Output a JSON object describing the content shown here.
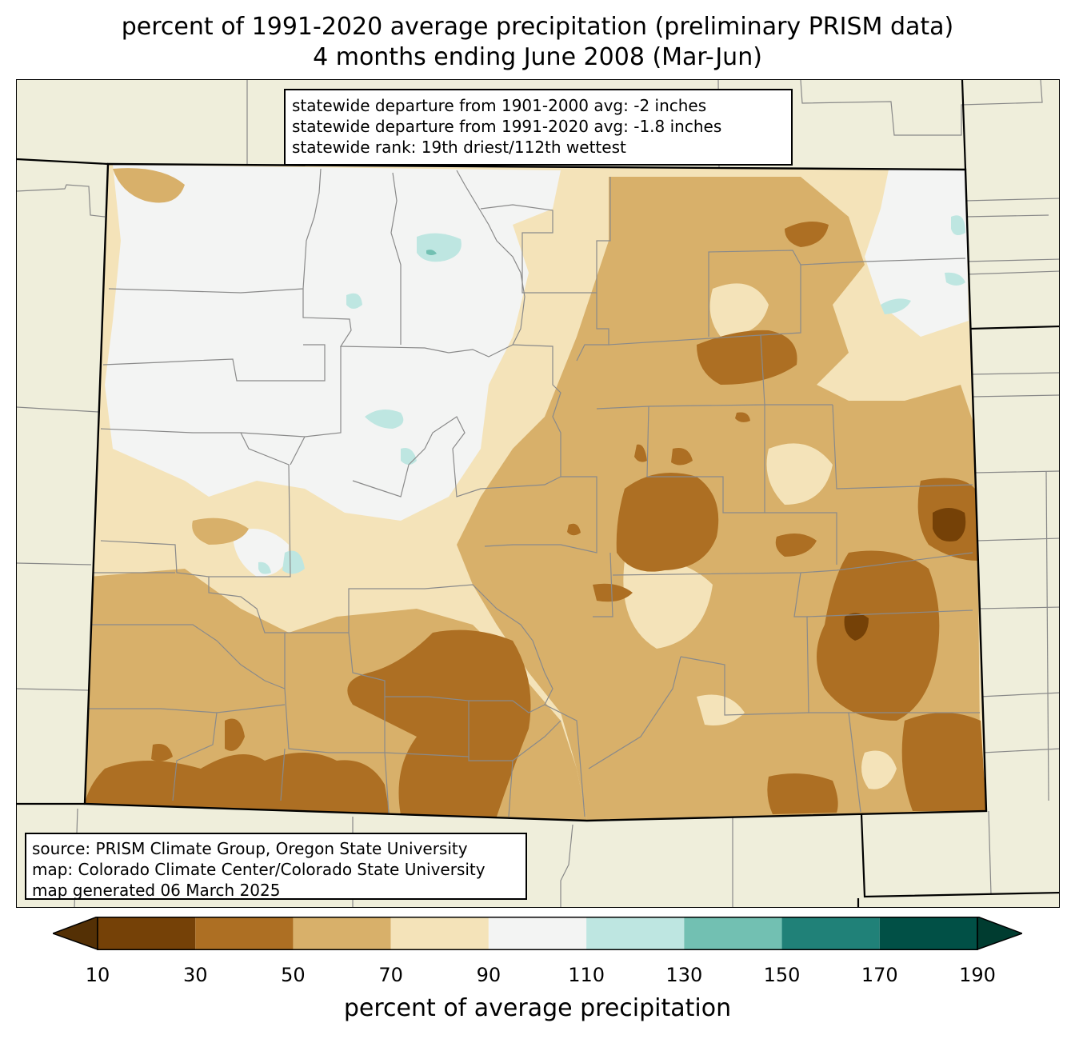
{
  "title": {
    "line1": "percent of 1991-2020 average precipitation (preliminary PRISM data)",
    "line2": "4 months ending June 2008 (Mar-Jun)"
  },
  "stats": {
    "line1": "statewide departure from 1901-2000 avg: -2 inches",
    "line2": "statewide departure from 1991-2020 avg: -1.8 inches",
    "line3": "statewide rank: 19th driest/112th wettest"
  },
  "source": {
    "line1": "source: PRISM Climate Group, Oregon State University",
    "line2": "map: Colorado Climate Center/Colorado State University",
    "line3": "map generated 06 March 2025"
  },
  "colorbar": {
    "label": "percent of average precipitation",
    "ticks": [
      "10",
      "30",
      "50",
      "70",
      "90",
      "110",
      "130",
      "150",
      "170",
      "190"
    ],
    "under_color": "#543005",
    "over_color": "#003c30",
    "bins": [
      {
        "from": 10,
        "to": 30,
        "color": "#754107"
      },
      {
        "from": 30,
        "to": 50,
        "color": "#ad6f23"
      },
      {
        "from": 50,
        "to": 70,
        "color": "#d8b06a"
      },
      {
        "from": 70,
        "to": 90,
        "color": "#f4e3b9"
      },
      {
        "from": 90,
        "to": 110,
        "color": "#f3f4f3"
      },
      {
        "from": 110,
        "to": 130,
        "color": "#bee6e1"
      },
      {
        "from": 130,
        "to": 150,
        "color": "#72c0b2"
      },
      {
        "from": 150,
        "to": 170,
        "color": "#208178"
      },
      {
        "from": 170,
        "to": 190,
        "color": "#015046"
      }
    ]
  },
  "map_colors": {
    "background": "#efeedb",
    "county_line": "#8a8a8a",
    "state_line": "#000000"
  }
}
